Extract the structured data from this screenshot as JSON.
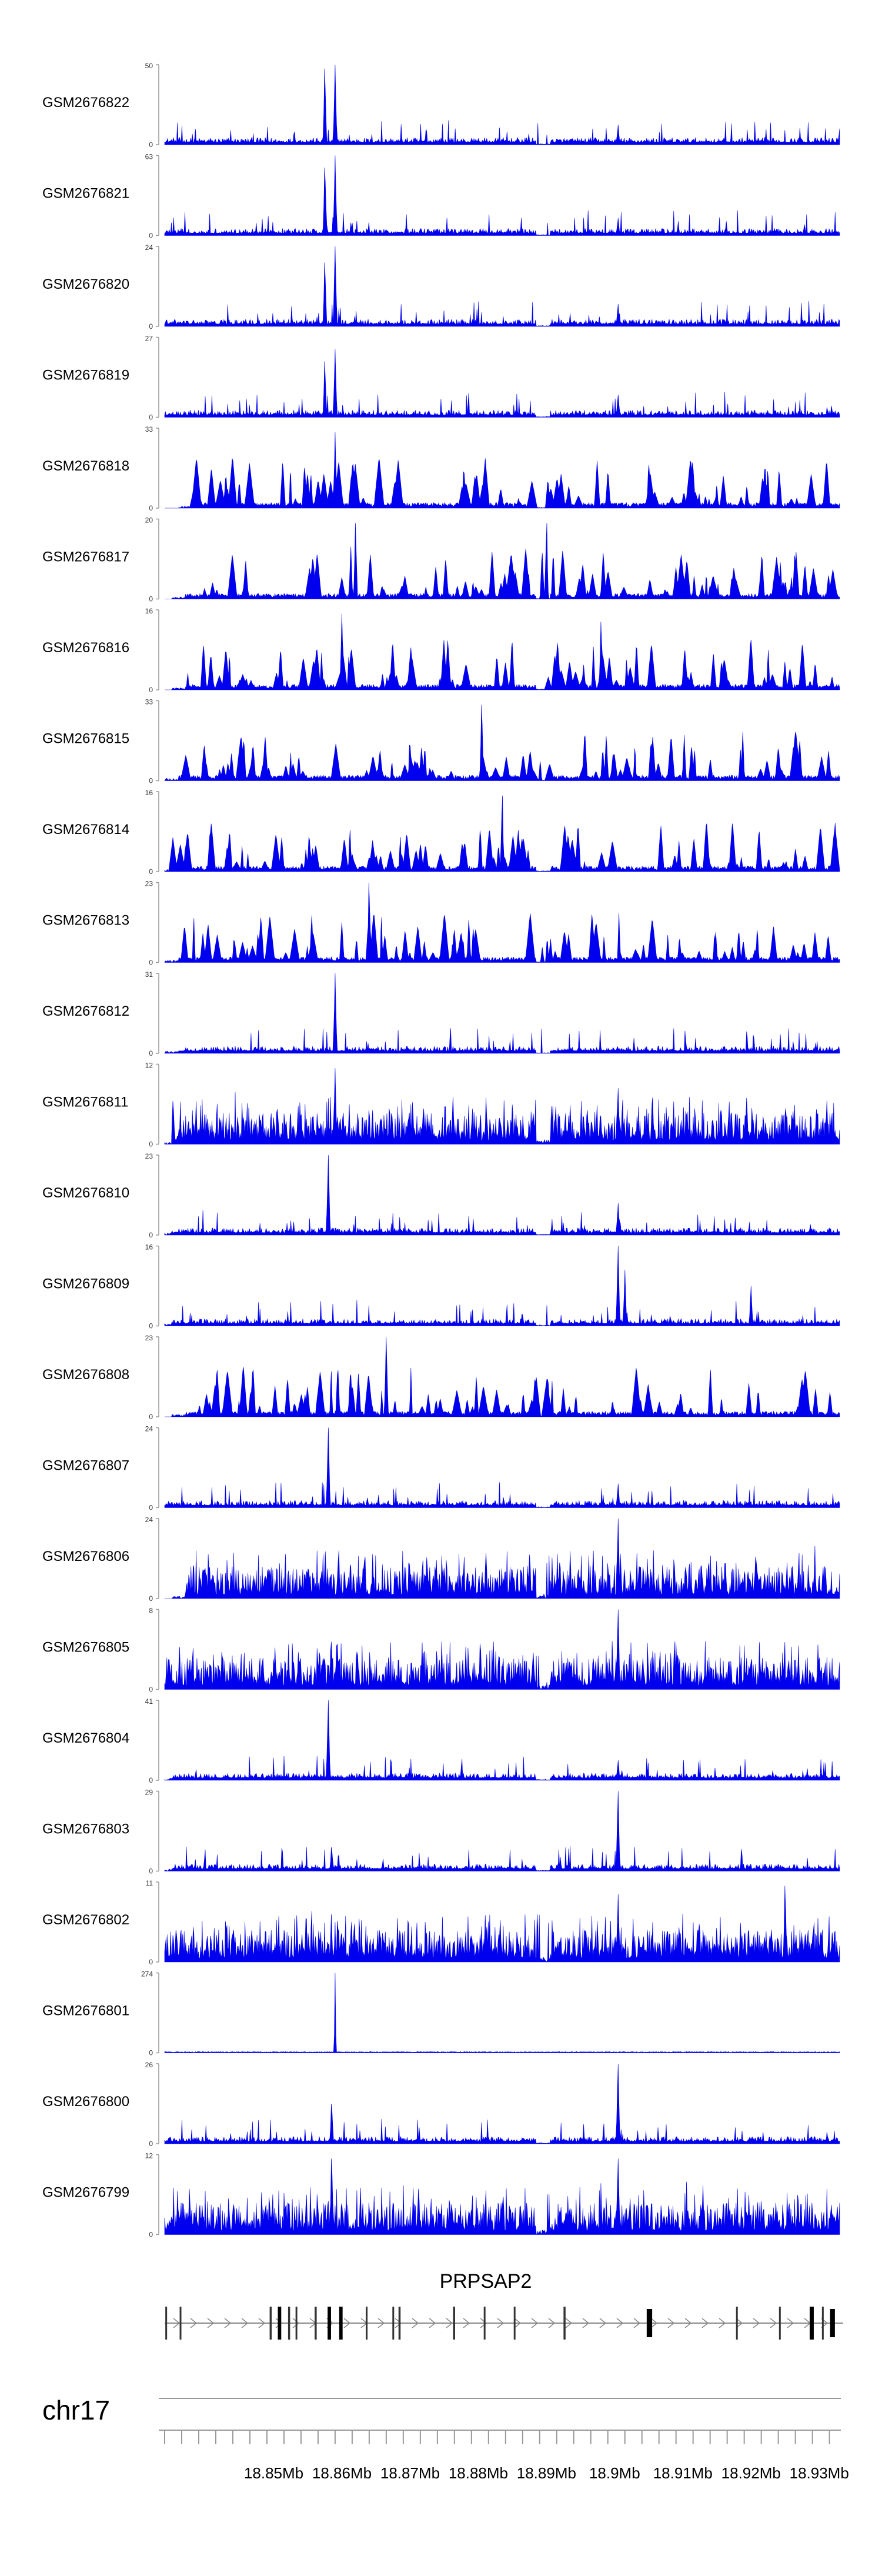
{
  "chart_data": {
    "type": "area",
    "title": "",
    "chromosome": "chr17",
    "xlabel": "",
    "ylabel": "",
    "xlim_mb": [
      18.834,
      18.933
    ],
    "x_ticks": [
      {
        "value": 18.85,
        "label": "18.85Mb"
      },
      {
        "value": 18.86,
        "label": "18.86Mb"
      },
      {
        "value": 18.87,
        "label": "18.87Mb"
      },
      {
        "value": 18.88,
        "label": "18.88Mb"
      },
      {
        "value": 18.89,
        "label": "18.89Mb"
      },
      {
        "value": 18.9,
        "label": "18.9Mb"
      },
      {
        "value": 18.91,
        "label": "18.91Mb"
      },
      {
        "value": 18.92,
        "label": "18.92Mb"
      },
      {
        "value": 18.93,
        "label": "18.93Mb"
      }
    ],
    "track_color": "#0000ee",
    "tracks": [
      {
        "name": "GSM2676822",
        "ymax": 50,
        "ymax_label": "50",
        "ymin_label": "0",
        "style": "smooth",
        "start": 18.834,
        "peaks": [
          [
            18.8575,
            0.95
          ],
          [
            18.859,
            1.0
          ],
          [
            18.9005,
            0.25
          ],
          [
            18.933,
            0.2
          ]
        ]
      },
      {
        "name": "GSM2676821",
        "ymax": 63,
        "ymax_label": "63",
        "ymin_label": "0",
        "style": "smooth",
        "start": 18.834,
        "peaks": [
          [
            18.8575,
            0.85
          ],
          [
            18.859,
            1.0
          ],
          [
            18.9005,
            0.22
          ]
        ]
      },
      {
        "name": "GSM2676820",
        "ymax": 24,
        "ymax_label": "24",
        "ymin_label": "0",
        "style": "smooth",
        "start": 18.834,
        "peaks": [
          [
            18.8575,
            0.8
          ],
          [
            18.859,
            1.0
          ],
          [
            18.9005,
            0.28
          ]
        ]
      },
      {
        "name": "GSM2676819",
        "ymax": 27,
        "ymax_label": "27",
        "ymin_label": "0",
        "style": "smooth",
        "start": 18.834,
        "peaks": [
          [
            18.8575,
            0.7
          ],
          [
            18.859,
            0.85
          ],
          [
            18.9005,
            0.28
          ]
        ]
      },
      {
        "name": "GSM2676818",
        "ymax": 33,
        "ymax_label": "33",
        "ymin_label": "0",
        "style": "spiky",
        "start": 18.838,
        "peaks": [
          [
            18.859,
            0.95
          ]
        ]
      },
      {
        "name": "GSM2676817",
        "ymax": 20,
        "ymax_label": "20",
        "ymin_label": "0",
        "style": "spiky",
        "start": 18.837,
        "peaks": [
          [
            18.862,
            0.95
          ],
          [
            18.89,
            0.95
          ]
        ]
      },
      {
        "name": "GSM2676816",
        "ymax": 16,
        "ymax_label": "16",
        "ymin_label": "0",
        "style": "spiky",
        "start": 18.837,
        "peaks": [
          [
            18.86,
            0.95
          ],
          [
            18.898,
            0.85
          ]
        ]
      },
      {
        "name": "GSM2676815",
        "ymax": 33,
        "ymax_label": "33",
        "ymin_label": "0",
        "style": "spiky",
        "start": 18.836,
        "peaks": [
          [
            18.8805,
            0.95
          ]
        ]
      },
      {
        "name": "GSM2676814",
        "ymax": 16,
        "ymax_label": "16",
        "ymin_label": "0",
        "style": "spiky",
        "start": 18.835,
        "peaks": [
          [
            18.8835,
            0.95
          ]
        ]
      },
      {
        "name": "GSM2676813",
        "ymax": 23,
        "ymax_label": "23",
        "ymin_label": "0",
        "style": "spiky",
        "start": 18.836,
        "peaks": [
          [
            18.864,
            1.0
          ]
        ]
      },
      {
        "name": "GSM2676812",
        "ymax": 31,
        "ymax_label": "31",
        "ymin_label": "0",
        "style": "smooth",
        "start": 18.836,
        "peaks": [
          [
            18.859,
            1.0
          ]
        ]
      },
      {
        "name": "GSM2676811",
        "ymax": 12,
        "ymax_label": "12",
        "ymin_label": "0",
        "style": "dense",
        "start": 18.835,
        "peaks": [
          [
            18.859,
            0.95
          ],
          [
            18.9005,
            0.7
          ]
        ]
      },
      {
        "name": "GSM2676810",
        "ymax": 23,
        "ymax_label": "23",
        "ymin_label": "0",
        "style": "smooth",
        "start": 18.835,
        "peaks": [
          [
            18.858,
            1.0
          ],
          [
            18.9005,
            0.4
          ]
        ]
      },
      {
        "name": "GSM2676809",
        "ymax": 16,
        "ymax_label": "16",
        "ymin_label": "0",
        "style": "smooth",
        "start": 18.835,
        "peaks": [
          [
            18.9005,
            1.0
          ],
          [
            18.9015,
            0.7
          ],
          [
            18.92,
            0.5
          ]
        ]
      },
      {
        "name": "GSM2676808",
        "ymax": 23,
        "ymax_label": "23",
        "ymin_label": "0",
        "style": "spiky",
        "start": 18.837,
        "peaks": [
          [
            18.8665,
            1.0
          ]
        ]
      },
      {
        "name": "GSM2676807",
        "ymax": 24,
        "ymax_label": "24",
        "ymin_label": "0",
        "style": "smooth",
        "start": 18.834,
        "peaks": [
          [
            18.858,
            1.0
          ],
          [
            18.9005,
            0.3
          ]
        ]
      },
      {
        "name": "GSM2676806",
        "ymax": 24,
        "ymax_label": "24",
        "ymin_label": "0",
        "style": "dense",
        "start": 18.837,
        "peaks": [
          [
            18.8595,
            0.6
          ],
          [
            18.9005,
            1.0
          ]
        ]
      },
      {
        "name": "GSM2676805",
        "ymax": 8,
        "ymax_label": "8",
        "ymin_label": "0",
        "style": "dense",
        "start": 18.834,
        "peaks": [
          [
            18.9005,
            1.0
          ]
        ]
      },
      {
        "name": "GSM2676804",
        "ymax": 41,
        "ymax_label": "41",
        "ymin_label": "0",
        "style": "smooth",
        "start": 18.835,
        "peaks": [
          [
            18.858,
            1.0
          ],
          [
            18.9005,
            0.25
          ]
        ]
      },
      {
        "name": "GSM2676803",
        "ymax": 29,
        "ymax_label": "29",
        "ymin_label": "0",
        "style": "smooth",
        "start": 18.835,
        "peaks": [
          [
            18.9005,
            1.0
          ],
          [
            18.8585,
            0.3
          ]
        ]
      },
      {
        "name": "GSM2676802",
        "ymax": 11,
        "ymax_label": "11",
        "ymin_label": "0",
        "style": "dense",
        "start": 18.834,
        "peaks": [
          [
            18.9005,
            0.85
          ],
          [
            18.925,
            0.95
          ]
        ]
      },
      {
        "name": "GSM2676801",
        "ymax": 274,
        "ymax_label": "274",
        "ymin_label": "0",
        "style": "single",
        "start": 18.834,
        "peaks": [
          [
            18.859,
            1.0
          ]
        ]
      },
      {
        "name": "GSM2676800",
        "ymax": 26,
        "ymax_label": "26",
        "ymin_label": "0",
        "style": "smooth",
        "start": 18.834,
        "peaks": [
          [
            18.9005,
            1.0
          ],
          [
            18.8585,
            0.5
          ]
        ]
      },
      {
        "name": "GSM2676799",
        "ymax": 12,
        "ymax_label": "12",
        "ymin_label": "0",
        "style": "dense",
        "start": 18.834,
        "peaks": [
          [
            18.8585,
            0.95
          ],
          [
            18.9005,
            0.95
          ]
        ]
      }
    ],
    "gene": {
      "name": "PRPSAP2",
      "start": 18.834,
      "end": 18.9335,
      "strand": "+",
      "exons": [
        [
          18.8341,
          18.8343
        ],
        [
          18.8362,
          18.8364
        ],
        [
          18.8494,
          18.8497
        ],
        [
          18.8506,
          18.8511
        ],
        [
          18.8521,
          18.8524
        ],
        [
          18.8532,
          18.8534
        ],
        [
          18.856,
          18.8563
        ],
        [
          18.8579,
          18.8584
        ],
        [
          18.8596,
          18.8601
        ],
        [
          18.8635,
          18.8637
        ],
        [
          18.8674,
          18.8676
        ],
        [
          18.8683,
          18.8686
        ],
        [
          18.8763,
          18.8766
        ],
        [
          18.8808,
          18.881
        ],
        [
          18.8852,
          18.8854
        ],
        [
          18.8925,
          18.8928
        ],
        [
          18.9047,
          18.9055
        ],
        [
          18.9178,
          18.918
        ],
        [
          18.9241,
          18.9243
        ],
        [
          18.9286,
          18.9292
        ],
        [
          18.9304,
          18.9306
        ],
        [
          18.9316,
          18.9323
        ]
      ]
    }
  }
}
